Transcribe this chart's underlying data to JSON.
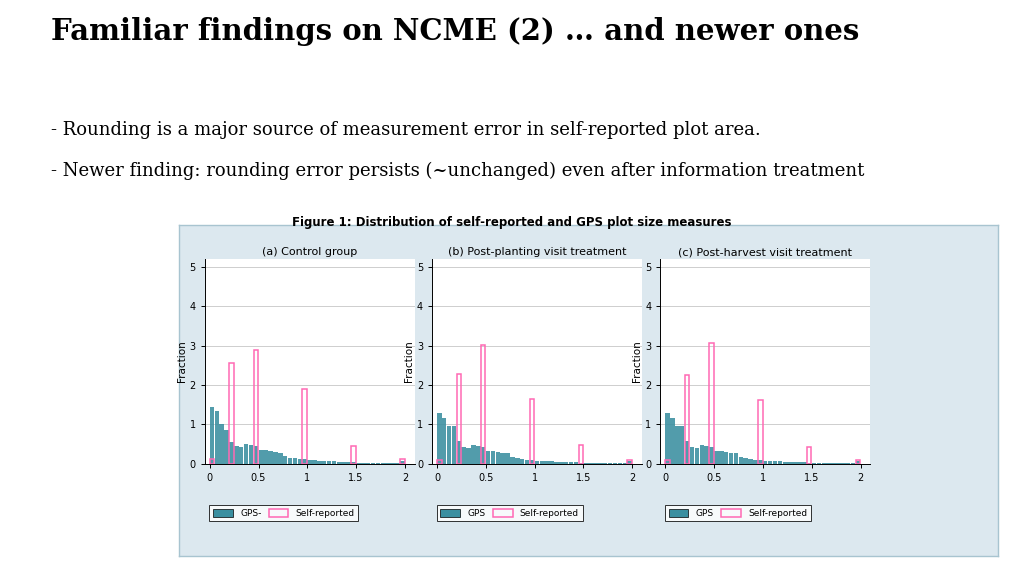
{
  "title": "Familiar findings on NCME (2) … and newer ones",
  "bullet1": "- Rounding is a major source of measurement error in self-reported plot area.",
  "bullet2": "- Newer finding: rounding error persists (~unchanged) even after information treatment",
  "fig_caption": "Figure 1: Distribution of self-reported and GPS plot size measures",
  "subplot_titles": [
    "(a) Control group",
    "(b) Post-planting visit treatment",
    "(c) Post-harvest visit treatment"
  ],
  "ylabel": "Fraction",
  "xlabel_ticks": [
    0,
    0.5,
    1,
    1.5,
    2
  ],
  "yticks": [
    0,
    1,
    2,
    3,
    4,
    5
  ],
  "ylim": [
    0,
    5.2
  ],
  "xlim": [
    -0.05,
    2.1
  ],
  "gps_color": "#3a8fa0",
  "self_color": "#ff69b4",
  "background_color": "#dce8ef",
  "panel_bg": "#ffffff",
  "legend_labels_a": [
    "GPS-",
    "Self-reported"
  ],
  "legend_labels_bc": [
    "GPS",
    "Self-reported"
  ],
  "gps_bins_a": [
    0.05,
    0.1,
    0.15,
    0.2,
    0.25,
    0.3,
    0.35,
    0.4,
    0.45,
    0.5,
    0.55,
    0.6,
    0.65,
    0.7,
    0.75,
    0.8,
    0.85,
    0.9,
    0.95,
    1.0,
    1.05,
    1.1,
    1.15,
    1.2,
    1.25,
    1.3,
    1.35,
    1.4,
    1.45,
    1.5,
    1.55,
    1.6,
    1.65,
    1.7,
    1.75,
    1.8,
    1.85,
    1.9,
    1.95,
    2.0
  ],
  "gps_vals_a": [
    1.45,
    1.35,
    1.0,
    0.85,
    0.55,
    0.45,
    0.42,
    0.5,
    0.47,
    0.45,
    0.35,
    0.35,
    0.32,
    0.3,
    0.28,
    0.2,
    0.15,
    0.15,
    0.12,
    0.12,
    0.1,
    0.09,
    0.08,
    0.07,
    0.06,
    0.06,
    0.05,
    0.05,
    0.04,
    0.04,
    0.03,
    0.03,
    0.03,
    0.02,
    0.02,
    0.02,
    0.02,
    0.02,
    0.02,
    0.07
  ],
  "self_vals_a": [
    0.12,
    0.0,
    0.0,
    0.0,
    2.55,
    0.0,
    0.0,
    0.0,
    0.0,
    2.9,
    0.0,
    0.0,
    0.0,
    0.0,
    0.0,
    0.0,
    0.0,
    0.0,
    0.0,
    1.9,
    0.0,
    0.0,
    0.0,
    0.0,
    0.0,
    0.0,
    0.0,
    0.0,
    0.0,
    0.45,
    0.0,
    0.0,
    0.0,
    0.0,
    0.0,
    0.0,
    0.0,
    0.0,
    0.0,
    0.12
  ],
  "gps_vals_b": [
    1.3,
    1.15,
    0.95,
    0.97,
    0.58,
    0.43,
    0.4,
    0.48,
    0.45,
    0.43,
    0.32,
    0.32,
    0.3,
    0.28,
    0.26,
    0.18,
    0.14,
    0.13,
    0.1,
    0.1,
    0.08,
    0.08,
    0.07,
    0.06,
    0.05,
    0.05,
    0.04,
    0.04,
    0.04,
    0.03,
    0.03,
    0.03,
    0.03,
    0.02,
    0.02,
    0.02,
    0.02,
    0.02,
    0.02,
    0.06
  ],
  "self_vals_b": [
    0.1,
    0.0,
    0.0,
    0.0,
    2.28,
    0.0,
    0.0,
    0.0,
    0.0,
    3.02,
    0.0,
    0.0,
    0.0,
    0.0,
    0.0,
    0.0,
    0.0,
    0.0,
    0.0,
    1.65,
    0.0,
    0.0,
    0.0,
    0.0,
    0.0,
    0.0,
    0.0,
    0.0,
    0.0,
    0.48,
    0.0,
    0.0,
    0.0,
    0.0,
    0.0,
    0.0,
    0.0,
    0.0,
    0.0,
    0.1
  ],
  "gps_vals_c": [
    1.28,
    1.15,
    0.95,
    0.97,
    0.58,
    0.43,
    0.4,
    0.48,
    0.45,
    0.43,
    0.32,
    0.32,
    0.3,
    0.28,
    0.26,
    0.18,
    0.14,
    0.13,
    0.1,
    0.1,
    0.08,
    0.08,
    0.07,
    0.06,
    0.05,
    0.05,
    0.04,
    0.04,
    0.04,
    0.03,
    0.03,
    0.03,
    0.03,
    0.02,
    0.02,
    0.02,
    0.02,
    0.02,
    0.02,
    0.06
  ],
  "self_vals_c": [
    0.1,
    0.0,
    0.0,
    0.0,
    2.25,
    0.0,
    0.0,
    0.0,
    0.0,
    3.08,
    0.0,
    0.0,
    0.0,
    0.0,
    0.0,
    0.0,
    0.0,
    0.0,
    0.0,
    1.62,
    0.0,
    0.0,
    0.0,
    0.0,
    0.0,
    0.0,
    0.0,
    0.0,
    0.0,
    0.42,
    0.0,
    0.0,
    0.0,
    0.0,
    0.0,
    0.0,
    0.0,
    0.0,
    0.0,
    0.1
  ],
  "bin_width": 0.05
}
